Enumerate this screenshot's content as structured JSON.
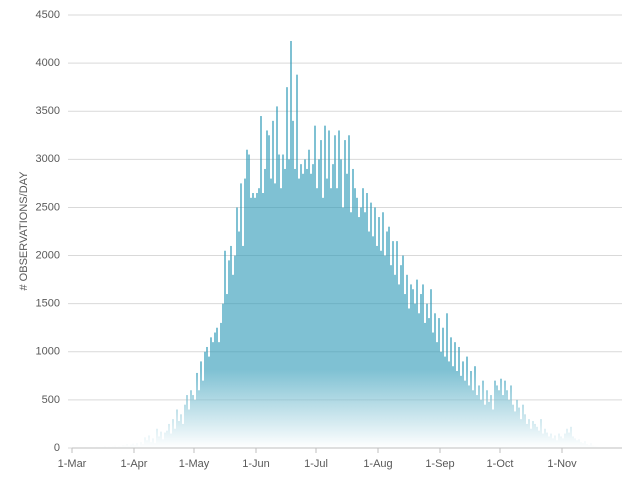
{
  "chart_data": {
    "type": "bar",
    "y_label": "# OBSERVATIONS/DAY",
    "color": "#2a98b6",
    "grid": true,
    "ylim": [
      0,
      4500
    ],
    "yticks": [
      0,
      500,
      1000,
      1500,
      2000,
      2500,
      3000,
      3500,
      4000,
      4500
    ],
    "categories": [
      "1-Mar",
      null,
      null,
      null,
      null,
      null,
      null,
      null,
      null,
      null,
      null,
      null,
      null,
      null,
      null,
      null,
      null,
      null,
      null,
      null,
      null,
      null,
      null,
      null,
      null,
      null,
      null,
      null,
      null,
      null,
      null,
      "1-Apr",
      null,
      null,
      null,
      null,
      null,
      null,
      null,
      null,
      null,
      null,
      null,
      null,
      null,
      null,
      null,
      null,
      null,
      null,
      null,
      null,
      null,
      null,
      null,
      null,
      null,
      null,
      null,
      null,
      null,
      "1-May",
      null,
      null,
      null,
      null,
      null,
      null,
      null,
      null,
      null,
      null,
      null,
      null,
      null,
      null,
      null,
      null,
      null,
      null,
      null,
      null,
      null,
      null,
      null,
      null,
      null,
      null,
      null,
      null,
      null,
      null,
      "1-Jun",
      null,
      null,
      null,
      null,
      null,
      null,
      null,
      null,
      null,
      null,
      null,
      null,
      null,
      null,
      null,
      null,
      null,
      null,
      null,
      null,
      null,
      null,
      null,
      null,
      null,
      null,
      null,
      null,
      null,
      "1-Jul",
      null,
      null,
      null,
      null,
      null,
      null,
      null,
      null,
      null,
      null,
      null,
      null,
      null,
      null,
      null,
      null,
      null,
      null,
      null,
      null,
      null,
      null,
      null,
      null,
      null,
      null,
      null,
      null,
      null,
      null,
      "1-Aug",
      null,
      null,
      null,
      null,
      null,
      null,
      null,
      null,
      null,
      null,
      null,
      null,
      null,
      null,
      null,
      null,
      null,
      null,
      null,
      null,
      null,
      null,
      null,
      null,
      null,
      null,
      null,
      null,
      null,
      null,
      "1-Sep",
      null,
      null,
      null,
      null,
      null,
      null,
      null,
      null,
      null,
      null,
      null,
      null,
      null,
      null,
      null,
      null,
      null,
      null,
      null,
      null,
      null,
      null,
      null,
      null,
      null,
      null,
      null,
      null,
      null,
      "1-Oct",
      null,
      null,
      null,
      null,
      null,
      null,
      null,
      null,
      null,
      null,
      null,
      null,
      null,
      null,
      null,
      null,
      null,
      null,
      null,
      null,
      null,
      null,
      null,
      null,
      null,
      null,
      null,
      null,
      null,
      null,
      "1-Nov",
      null,
      null,
      null,
      null,
      null,
      null,
      null,
      null,
      null,
      null,
      null,
      null,
      null,
      null,
      null,
      null,
      null,
      null,
      null,
      null,
      null,
      null,
      null,
      null,
      null,
      null,
      null,
      null,
      null
    ],
    "values": [
      5,
      3,
      8,
      2,
      6,
      4,
      10,
      5,
      3,
      12,
      8,
      6,
      15,
      10,
      5,
      12,
      20,
      8,
      15,
      10,
      18,
      25,
      12,
      20,
      15,
      30,
      25,
      40,
      20,
      35,
      45,
      30,
      50,
      20,
      60,
      40,
      110,
      80,
      130,
      60,
      100,
      50,
      200,
      120,
      170,
      90,
      160,
      180,
      250,
      150,
      300,
      200,
      400,
      280,
      350,
      250,
      450,
      550,
      400,
      600,
      550,
      500,
      780,
      600,
      900,
      700,
      1000,
      1050,
      950,
      1150,
      1100,
      1200,
      1250,
      1100,
      1300,
      1500,
      2050,
      1600,
      1950,
      2100,
      1800,
      2000,
      2500,
      2250,
      2750,
      2100,
      2800,
      3100,
      3050,
      2600,
      2650,
      2600,
      2650,
      2700,
      3450,
      2650,
      2900,
      3300,
      3250,
      2800,
      3400,
      2750,
      3550,
      3050,
      2700,
      3050,
      2900,
      3750,
      3000,
      4230,
      3400,
      2900,
      3880,
      2800,
      2950,
      2850,
      3000,
      2900,
      3100,
      2850,
      2950,
      3350,
      2700,
      3000,
      3200,
      2600,
      3350,
      2800,
      3300,
      2700,
      2950,
      3250,
      2700,
      3300,
      3000,
      2500,
      3200,
      2850,
      3250,
      2450,
      2900,
      2700,
      2600,
      2400,
      2500,
      2700,
      2450,
      2650,
      2250,
      2550,
      2200,
      2500,
      2100,
      2400,
      2050,
      2450,
      2000,
      2250,
      2300,
      1900,
      2150,
      1800,
      2150,
      1700,
      1900,
      2000,
      1600,
      1800,
      1450,
      1700,
      1650,
      1500,
      1750,
      1400,
      1600,
      1700,
      1300,
      1500,
      1350,
      1650,
      1200,
      1400,
      1100,
      1350,
      1000,
      1250,
      950,
      1400,
      900,
      1150,
      850,
      1100,
      800,
      1050,
      750,
      900,
      700,
      950,
      650,
      800,
      600,
      850,
      550,
      650,
      500,
      700,
      450,
      600,
      480,
      550,
      400,
      700,
      650,
      600,
      720,
      550,
      700,
      600,
      500,
      650,
      450,
      380,
      500,
      420,
      300,
      450,
      350,
      250,
      300,
      200,
      280,
      250,
      220,
      180,
      300,
      150,
      200,
      160,
      120,
      150,
      100,
      130,
      80,
      150,
      120,
      100,
      150,
      200,
      160,
      220,
      120,
      100,
      80,
      90,
      60,
      50,
      70,
      40,
      30,
      50,
      25,
      20,
      15,
      10,
      8,
      12,
      5,
      8,
      3,
      5,
      2,
      4,
      1,
      3,
      2
    ]
  }
}
